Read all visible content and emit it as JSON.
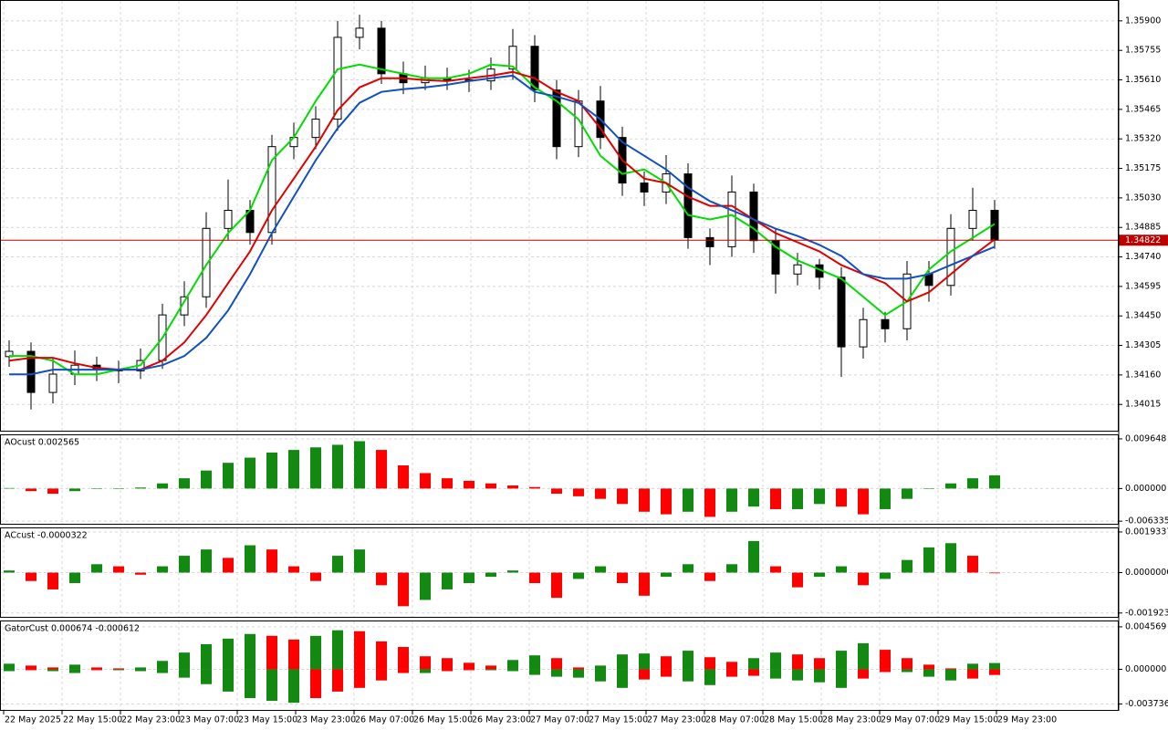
{
  "chart_data": [
    {
      "type": "candlestick",
      "up_color": "#ffffff",
      "down_color": "#000000",
      "outline_color": "#000000",
      "open": [
        1.3425,
        1.34276,
        1.34074,
        1.34164,
        1.34208,
        1.34186,
        1.3418,
        1.34231,
        1.34455,
        1.34544,
        1.3488,
        1.34969,
        1.3486,
        1.35282,
        1.35327,
        1.35417,
        1.35819,
        1.35864,
        1.3564,
        1.35596,
        1.3562,
        1.3561,
        1.35605,
        1.35663,
        1.35775,
        1.3556,
        1.35282,
        1.35506,
        1.35327,
        1.35103,
        1.35059,
        1.35148,
        1.34835,
        1.3479,
        1.35059,
        1.3482,
        1.34656,
        1.34701,
        1.3464,
        1.34298,
        1.34432,
        1.34387,
        1.34656,
        1.346,
        1.3488,
        1.34969
      ],
      "high": [
        1.3433,
        1.3432,
        1.3424,
        1.3428,
        1.3425,
        1.3423,
        1.3429,
        1.3451,
        1.3462,
        1.3496,
        1.3512,
        1.3502,
        1.3534,
        1.354,
        1.3548,
        1.359,
        1.3593,
        1.359,
        1.357,
        1.3568,
        1.3567,
        1.3566,
        1.3572,
        1.3586,
        1.3583,
        1.3561,
        1.3556,
        1.3558,
        1.3538,
        1.3516,
        1.3524,
        1.352,
        1.3488,
        1.3514,
        1.351,
        1.3488,
        1.3476,
        1.3473,
        1.3469,
        1.3449,
        1.3447,
        1.3472,
        1.3472,
        1.3495,
        1.3508,
        1.3502
      ],
      "low": [
        1.342,
        1.3399,
        1.3402,
        1.3411,
        1.3413,
        1.3412,
        1.3414,
        1.3419,
        1.344,
        1.3449,
        1.3482,
        1.348,
        1.348,
        1.3522,
        1.3527,
        1.3536,
        1.3576,
        1.3559,
        1.3554,
        1.3556,
        1.3556,
        1.3555,
        1.3556,
        1.3561,
        1.355,
        1.3522,
        1.3523,
        1.3527,
        1.3504,
        1.3499,
        1.35,
        1.3478,
        1.347,
        1.3474,
        1.3476,
        1.3456,
        1.346,
        1.3458,
        1.3415,
        1.3424,
        1.3432,
        1.3433,
        1.3452,
        1.3455,
        1.3482,
        1.3478
      ],
      "close": [
        1.34276,
        1.34074,
        1.34164,
        1.34208,
        1.34186,
        1.3418,
        1.34231,
        1.34455,
        1.34544,
        1.3488,
        1.34969,
        1.3486,
        1.35282,
        1.35327,
        1.35417,
        1.35819,
        1.35864,
        1.3564,
        1.35596,
        1.3562,
        1.3561,
        1.35605,
        1.35663,
        1.35775,
        1.3556,
        1.35282,
        1.35506,
        1.35327,
        1.35103,
        1.35059,
        1.35148,
        1.34835,
        1.3479,
        1.35059,
        1.3482,
        1.34656,
        1.34701,
        1.3464,
        1.34298,
        1.34432,
        1.34387,
        1.34656,
        1.346,
        1.3488,
        1.34969,
        1.34822
      ],
      "lines": [
        {
          "color": "#00dd00",
          "values": [
            1.34253,
            1.34253,
            1.3423,
            1.34163,
            1.34163,
            1.34186,
            1.34208,
            1.34342,
            1.34521,
            1.347,
            1.34857,
            1.34969,
            1.35215,
            1.35327,
            1.35506,
            1.35662,
            1.35685,
            1.35662,
            1.3564,
            1.35618,
            1.35618,
            1.3564,
            1.35685,
            1.35676,
            1.35573,
            1.35506,
            1.35416,
            1.35237,
            1.35148,
            1.3517,
            1.35103,
            1.34946,
            1.34924,
            1.34946,
            1.34879,
            1.3479,
            1.34723,
            1.34678,
            1.34633,
            1.34544,
            1.34454,
            1.34521,
            1.34678,
            1.34767,
            1.34834,
            1.34902
          ]
        },
        {
          "color": "#e00000",
          "values": [
            1.3423,
            1.34244,
            1.34244,
            1.34217,
            1.34195,
            1.34186,
            1.34186,
            1.3423,
            1.3432,
            1.34454,
            1.34611,
            1.34767,
            1.34969,
            1.35125,
            1.35282,
            1.35461,
            1.35573,
            1.35618,
            1.35618,
            1.35609,
            1.35604,
            1.35618,
            1.35631,
            1.35649,
            1.35618,
            1.35551,
            1.35506,
            1.35372,
            1.35215,
            1.35125,
            1.35103,
            1.35036,
            1.34991,
            1.34991,
            1.34924,
            1.34857,
            1.34812,
            1.34767,
            1.347,
            1.34655,
            1.34611,
            1.34521,
            1.34566,
            1.34655,
            1.34745,
            1.34826
          ]
        },
        {
          "color": "#1050c0",
          "values": [
            1.34163,
            1.34163,
            1.34186,
            1.34186,
            1.34186,
            1.34186,
            1.34186,
            1.34208,
            1.34253,
            1.34342,
            1.34477,
            1.34655,
            1.34857,
            1.35036,
            1.35215,
            1.35372,
            1.35497,
            1.35551,
            1.35564,
            1.35573,
            1.35586,
            1.35604,
            1.35618,
            1.35631,
            1.35551,
            1.35528,
            1.35497,
            1.35416,
            1.35304,
            1.35237,
            1.3517,
            1.35081,
            1.35014,
            1.34969,
            1.34924,
            1.34879,
            1.34843,
            1.34799,
            1.34745,
            1.34655,
            1.34633,
            1.34633,
            1.34655,
            1.347,
            1.34745,
            1.3479
          ]
        }
      ],
      "bid": 1.34822,
      "bid_color": "#c00000",
      "ylim": [
        1.33886,
        1.35998
      ],
      "yticks": [
        {
          "value": 1.359,
          "label": "1.35900"
        },
        1.35755,
        {
          "value": 1.3561,
          "label": "1.35610"
        },
        1.35465,
        {
          "value": 1.3532,
          "label": "1.35320"
        },
        1.35175,
        {
          "value": 1.3503,
          "label": "1.35030"
        },
        1.34885,
        {
          "value": 1.3474,
          "label": "1.34740"
        },
        1.34595,
        {
          "value": 1.3445,
          "label": "1.34450"
        },
        1.34305,
        {
          "value": 1.3416,
          "label": "1.34160"
        },
        1.34015
      ],
      "grid": true
    },
    {
      "type": "oscillator",
      "title": "AOcust 0.002565",
      "up_color": "#128a12",
      "down_color": "#ff0000",
      "values": [
        0.0001,
        -0.0005,
        -0.001,
        -0.0005,
        0,
        0,
        0.0002,
        0.001,
        0.002,
        0.0035,
        0.005,
        0.006,
        0.007,
        0.0075,
        0.008,
        0.0085,
        0.0092,
        0.0075,
        0.0045,
        0.003,
        0.002,
        0.0015,
        0.001,
        0.0006,
        0.0003,
        -0.001,
        -0.0015,
        -0.002,
        -0.003,
        -0.0045,
        -0.005,
        -0.0045,
        -0.0055,
        -0.0045,
        -0.0035,
        -0.004,
        -0.004,
        -0.003,
        -0.0035,
        -0.005,
        -0.004,
        -0.002,
        0,
        0.001,
        0.002,
        0.002565
      ],
      "ylim": [
        -0.00684,
        0.01035
      ],
      "yticks": [
        0.009648,
        {
          "value": 0,
          "label": "0.000000"
        },
        -0.006335
      ],
      "grid": true
    },
    {
      "type": "oscillator",
      "title": "ACcust -0.0000322",
      "up_color": "#128a12",
      "down_color": "#ff0000",
      "values": [
        0.0001,
        -0.0004,
        -0.0008,
        -0.0005,
        0.0004,
        0.0003,
        -0.0001,
        0.0003,
        0.0008,
        0.0011,
        0.0007,
        0.0013,
        0.0011,
        0.0003,
        -0.0004,
        0.0008,
        0.0011,
        -0.0006,
        -0.0016,
        -0.0013,
        -0.0008,
        -0.0005,
        -0.0002,
        0.0001,
        -0.0005,
        -0.0012,
        -0.0003,
        0.0003,
        -0.0005,
        -0.0011,
        -0.0002,
        0.0004,
        -0.0004,
        0.0004,
        0.0015,
        0.0003,
        -0.0007,
        -0.0002,
        0.0003,
        -0.0006,
        -0.0003,
        0.0006,
        0.0012,
        0.0014,
        0.0008,
        -3.22e-05
      ],
      "ylim": [
        -0.0021056,
        0.0021056
      ],
      "yticks": [
        0.0019337,
        {
          "value": 0,
          "label": "0.0000000"
        },
        -0.0019231
      ],
      "grid": true
    },
    {
      "type": "gator",
      "title": "GatorCust 0.000674 -0.000612",
      "up_color": "#128a12",
      "down_color": "#ff0000",
      "upper": [
        0.0006,
        0.0004,
        0.0002,
        0.0005,
        0.0002,
        0.0001,
        0.0002,
        0.0009,
        0.0018,
        0.0027,
        0.0033,
        0.0038,
        0.0036,
        0.0032,
        0.0036,
        0.0042,
        0.0041,
        0.003,
        0.0024,
        0.0014,
        0.0012,
        0.0007,
        0.0004,
        0.001,
        0.0015,
        0.0012,
        0.0002,
        0.0004,
        0.0016,
        0.0017,
        0.0014,
        0.002,
        0.0013,
        0.0008,
        0.0012,
        0.0018,
        0.0016,
        0.0012,
        0.002,
        0.0028,
        0.0021,
        0.0012,
        0.0005,
        0.0001,
        0.0006,
        0.000674
      ],
      "lower": [
        -0.0002,
        -0.0001,
        -0.0002,
        -0.0004,
        -0.0001,
        -0.0001,
        -0.0002,
        -0.0004,
        -0.0009,
        -0.0016,
        -0.0024,
        -0.0031,
        -0.0034,
        -0.0036,
        -0.0031,
        -0.0024,
        -0.002,
        -0.0012,
        -0.0004,
        -0.0004,
        -0.0002,
        -0.0001,
        -0.0001,
        -0.0002,
        -0.0006,
        -0.0008,
        -0.0009,
        -0.0013,
        -0.002,
        -0.0011,
        -0.0008,
        -0.0013,
        -0.0017,
        -0.0008,
        -0.0007,
        -0.001,
        -0.0012,
        -0.0014,
        -0.002,
        -0.001,
        -0.0003,
        -0.0003,
        -0.0008,
        -0.0012,
        -0.001,
        -0.000612
      ],
      "ylim": [
        -0.004374,
        0.005152
      ],
      "yticks": [
        0.004569,
        {
          "value": 0,
          "label": "0.000000"
        },
        -0.003736
      ],
      "grid": true
    }
  ],
  "time_labels": [
    "22 May 2025",
    "22 May 15:00",
    "22 May 23:00",
    "23 May 07:00",
    "23 May 15:00",
    "23 May 23:00",
    "26 May 07:00",
    "26 May 15:00",
    "26 May 23:00",
    "27 May 07:00",
    "27 May 15:00",
    "27 May 23:00",
    "28 May 07:00",
    "28 May 15:00",
    "28 May 23:00",
    "29 May 07:00",
    "29 May 15:00",
    "29 May 23:00"
  ]
}
